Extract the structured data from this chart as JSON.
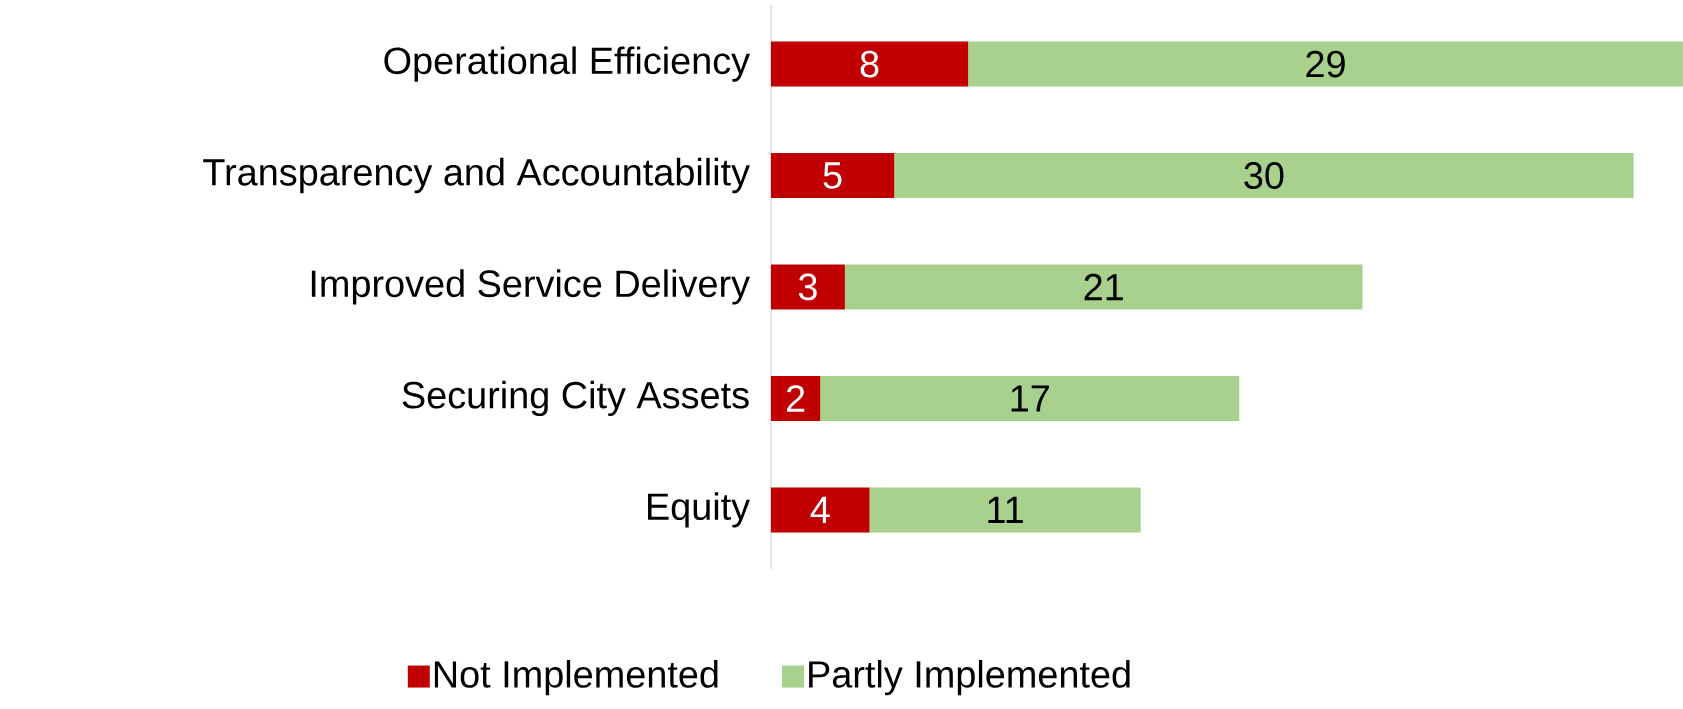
{
  "chart_data": {
    "type": "bar",
    "orientation": "horizontal",
    "stacked": true,
    "data_labels": true,
    "legend": "bottom",
    "categories": [
      "Operational Efficiency",
      "Transparency and Accountability",
      "Improved Service Delivery",
      "Securing City Assets",
      "Equity"
    ],
    "series": [
      {
        "name": "Not Implemented",
        "color": "#c00000",
        "values": [
          8,
          5,
          3,
          2,
          4
        ]
      },
      {
        "name": "Partly Implemented",
        "color": "#a9d18e",
        "values": [
          29,
          30,
          21,
          17,
          11
        ]
      }
    ]
  }
}
